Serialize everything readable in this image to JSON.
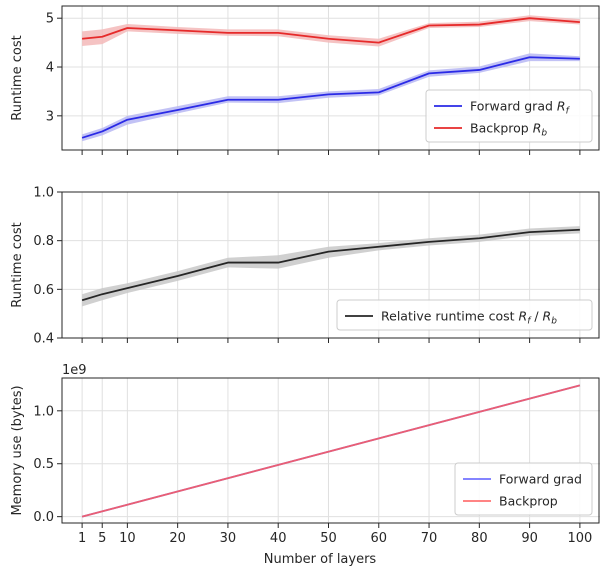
{
  "figure": {
    "xlabel": "Number of layers"
  },
  "chart_data": [
    {
      "type": "line",
      "ylabel": "Runtime cost",
      "ylim": [
        2.3,
        5.25
      ],
      "yticks": [
        3,
        4,
        5
      ],
      "xlim": [
        -3,
        104
      ],
      "xticks": [
        1,
        5,
        10,
        20,
        30,
        40,
        50,
        60,
        70,
        80,
        90,
        100
      ],
      "grid": true,
      "legend_position": "lower-right",
      "x": [
        1,
        5,
        10,
        20,
        30,
        40,
        50,
        60,
        70,
        80,
        90,
        100
      ],
      "series": [
        {
          "name": "Forward grad R_f",
          "color": "#2a2ae6",
          "band_color": "#b7b7f3",
          "values": [
            2.55,
            2.68,
            2.92,
            3.12,
            3.33,
            3.33,
            3.44,
            3.48,
            3.87,
            3.94,
            4.2,
            4.17
          ],
          "lower": [
            2.48,
            2.6,
            2.82,
            3.05,
            3.27,
            3.26,
            3.37,
            3.42,
            3.8,
            3.88,
            4.12,
            4.12
          ],
          "upper": [
            2.62,
            2.75,
            3.0,
            3.2,
            3.4,
            3.4,
            3.5,
            3.55,
            3.93,
            4.01,
            4.28,
            4.22
          ]
        },
        {
          "name": "Backprop R_b",
          "color": "#e62a2a",
          "band_color": "#f3b9b9",
          "values": [
            4.58,
            4.62,
            4.8,
            4.75,
            4.7,
            4.7,
            4.58,
            4.5,
            4.85,
            4.87,
            5.0,
            4.92
          ],
          "lower": [
            4.43,
            4.47,
            4.73,
            4.68,
            4.64,
            4.63,
            4.5,
            4.42,
            4.8,
            4.82,
            4.94,
            4.87
          ],
          "upper": [
            4.73,
            4.77,
            4.88,
            4.82,
            4.77,
            4.77,
            4.65,
            4.58,
            4.9,
            4.93,
            5.06,
            4.98
          ]
        }
      ],
      "legend": [
        {
          "main": "Forward grad ",
          "var": "R",
          "sub": "f"
        },
        {
          "main": "Backprop ",
          "var": "R",
          "sub": "b"
        }
      ]
    },
    {
      "type": "line",
      "ylabel": "Runtime cost",
      "ylim": [
        0.4,
        1.0
      ],
      "yticks": [
        0.4,
        0.6,
        0.8,
        1.0
      ],
      "ytick_labels": [
        "0.4",
        "0.6",
        "0.8",
        "1.0"
      ],
      "xlim": [
        -3,
        104
      ],
      "xticks": [
        1,
        5,
        10,
        20,
        30,
        40,
        50,
        60,
        70,
        80,
        90,
        100
      ],
      "grid": true,
      "legend_position": "lower-right",
      "x": [
        1,
        5,
        10,
        20,
        30,
        40,
        50,
        60,
        70,
        80,
        90,
        100
      ],
      "series": [
        {
          "name": "Relative runtime cost R_f / R_b",
          "color": "#262626",
          "band_color": "#c8c8c8",
          "values": [
            0.555,
            0.58,
            0.605,
            0.655,
            0.71,
            0.71,
            0.755,
            0.775,
            0.795,
            0.81,
            0.835,
            0.845
          ],
          "lower": [
            0.53,
            0.555,
            0.585,
            0.635,
            0.69,
            0.685,
            0.73,
            0.76,
            0.78,
            0.795,
            0.82,
            0.83
          ],
          "upper": [
            0.58,
            0.605,
            0.625,
            0.675,
            0.73,
            0.74,
            0.775,
            0.79,
            0.81,
            0.825,
            0.85,
            0.86
          ]
        }
      ],
      "legend": [
        {
          "main": "Relative runtime cost ",
          "var": "R",
          "sub": "f",
          "mid": " / ",
          "var2": "R",
          "sub2": "b"
        }
      ]
    },
    {
      "type": "line",
      "ylabel": "Memory use (bytes)",
      "ylim": [
        -0.06,
        1.31
      ],
      "yticks": [
        0,
        0.5,
        1.0
      ],
      "ytick_labels": [
        "0.0",
        "0.5",
        "1.0"
      ],
      "offset_label": "1e9",
      "xlim": [
        -3,
        104
      ],
      "xticks": [
        1,
        5,
        10,
        20,
        30,
        40,
        50,
        60,
        70,
        80,
        90,
        100
      ],
      "xlabel": "Number of layers",
      "grid": true,
      "legend_position": "lower-right",
      "x": [
        1,
        100
      ],
      "series": [
        {
          "name": "Forward grad",
          "color": "#5a5aff",
          "values": [
            0.0,
            1.24
          ]
        },
        {
          "name": "Backprop",
          "color": "#ff5a5a",
          "values": [
            0.0,
            1.24
          ]
        }
      ],
      "legend": [
        {
          "main": "Forward grad"
        },
        {
          "main": "Backprop"
        }
      ]
    }
  ]
}
